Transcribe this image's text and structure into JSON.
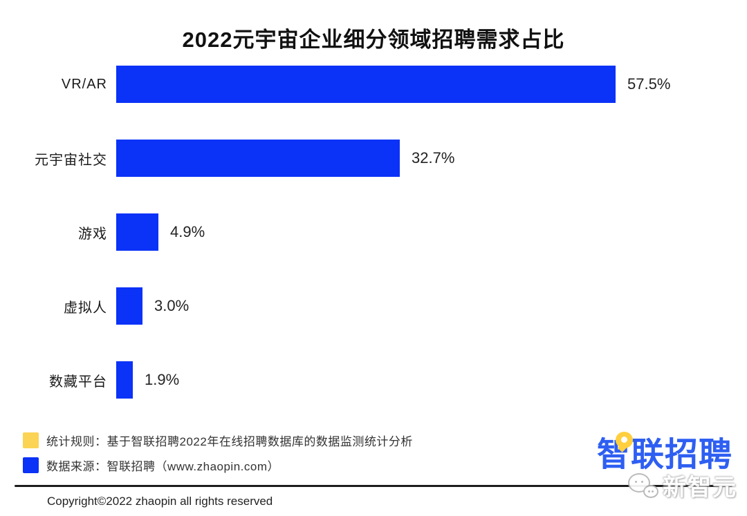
{
  "page": {
    "copyright": "Copyright©2022 zhaopin all rights reserved"
  },
  "chart_data": {
    "type": "bar",
    "orientation": "horizontal",
    "title": "2022元宇宙企业细分领域招聘需求占比",
    "categories": [
      "VR/AR",
      "元宇宙社交",
      "游戏",
      "虚拟人",
      "数藏平台"
    ],
    "values": [
      57.5,
      32.7,
      4.9,
      3.0,
      1.9
    ],
    "value_labels": [
      "57.5%",
      "32.7%",
      "4.9%",
      "3.0%",
      "1.9%"
    ],
    "xlim": [
      0,
      62
    ],
    "bar_color": "#0b32f7",
    "grid": false,
    "legend_position": "none",
    "value_label_position": "right-of-bar"
  },
  "legend": {
    "items": [
      {
        "color": "#fbd355",
        "label": "统计规则：基于智联招聘2022年在线招聘数据库的数据监测统计分析"
      },
      {
        "color": "#0b32f7",
        "label": "数据来源：智联招聘（www.zhaopin.com）"
      }
    ]
  },
  "branding": {
    "logo_text": "智联招聘",
    "logo_color": "#2e5ff2",
    "logo_accent_color": "#ffcf3e",
    "watermark_text": "新智元",
    "watermark_icon": "wechat-icon"
  }
}
